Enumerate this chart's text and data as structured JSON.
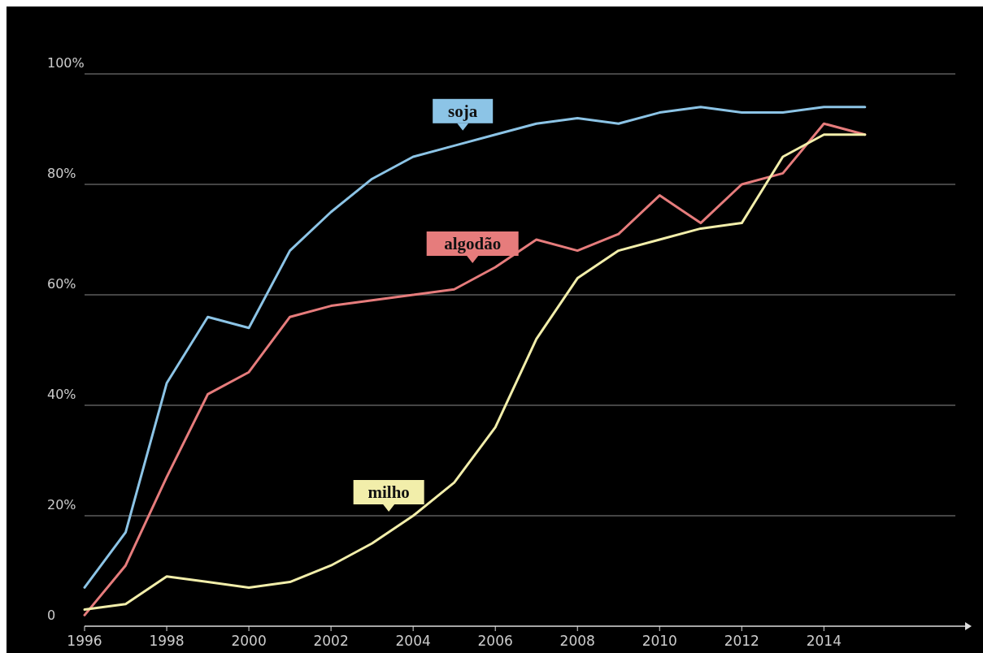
{
  "chart_data": {
    "type": "line",
    "x": [
      1996,
      1997,
      1998,
      1999,
      2000,
      2001,
      2002,
      2003,
      2004,
      2005,
      2006,
      2007,
      2008,
      2009,
      2010,
      2011,
      2012,
      2013,
      2014,
      2015
    ],
    "series": [
      {
        "name": "soja",
        "color": "#8cc4e6",
        "values": [
          7,
          17,
          44,
          56,
          54,
          68,
          75,
          81,
          85,
          87,
          89,
          91,
          92,
          91,
          93,
          94,
          93,
          93,
          94,
          94
        ]
      },
      {
        "name": "algodão",
        "color": "#e67c7c",
        "values": [
          2,
          11,
          27,
          42,
          46,
          56,
          58,
          59,
          60,
          61,
          65,
          70,
          68,
          71,
          78,
          73,
          80,
          82,
          91,
          89
        ]
      },
      {
        "name": "milho",
        "color": "#f2eeaa",
        "values": [
          3,
          4,
          9,
          8,
          7,
          8,
          11,
          15,
          20,
          26,
          36,
          52,
          63,
          68,
          70,
          72,
          73,
          85,
          89,
          89
        ]
      }
    ],
    "xlim": [
      1996,
      2017.2
    ],
    "xticks": [
      1996,
      1998,
      2000,
      2002,
      2004,
      2006,
      2008,
      2010,
      2012,
      2014
    ],
    "ylim": [
      0,
      100
    ],
    "yticks": [
      {
        "value": 0,
        "label": "0"
      },
      {
        "value": 20,
        "label": "20%"
      },
      {
        "value": 40,
        "label": "40%"
      },
      {
        "value": 60,
        "label": "60%"
      },
      {
        "value": 80,
        "label": "80%"
      },
      {
        "value": 100,
        "label": "100%"
      }
    ],
    "grid": "y",
    "marker": "none",
    "line_style": "solid"
  }
}
